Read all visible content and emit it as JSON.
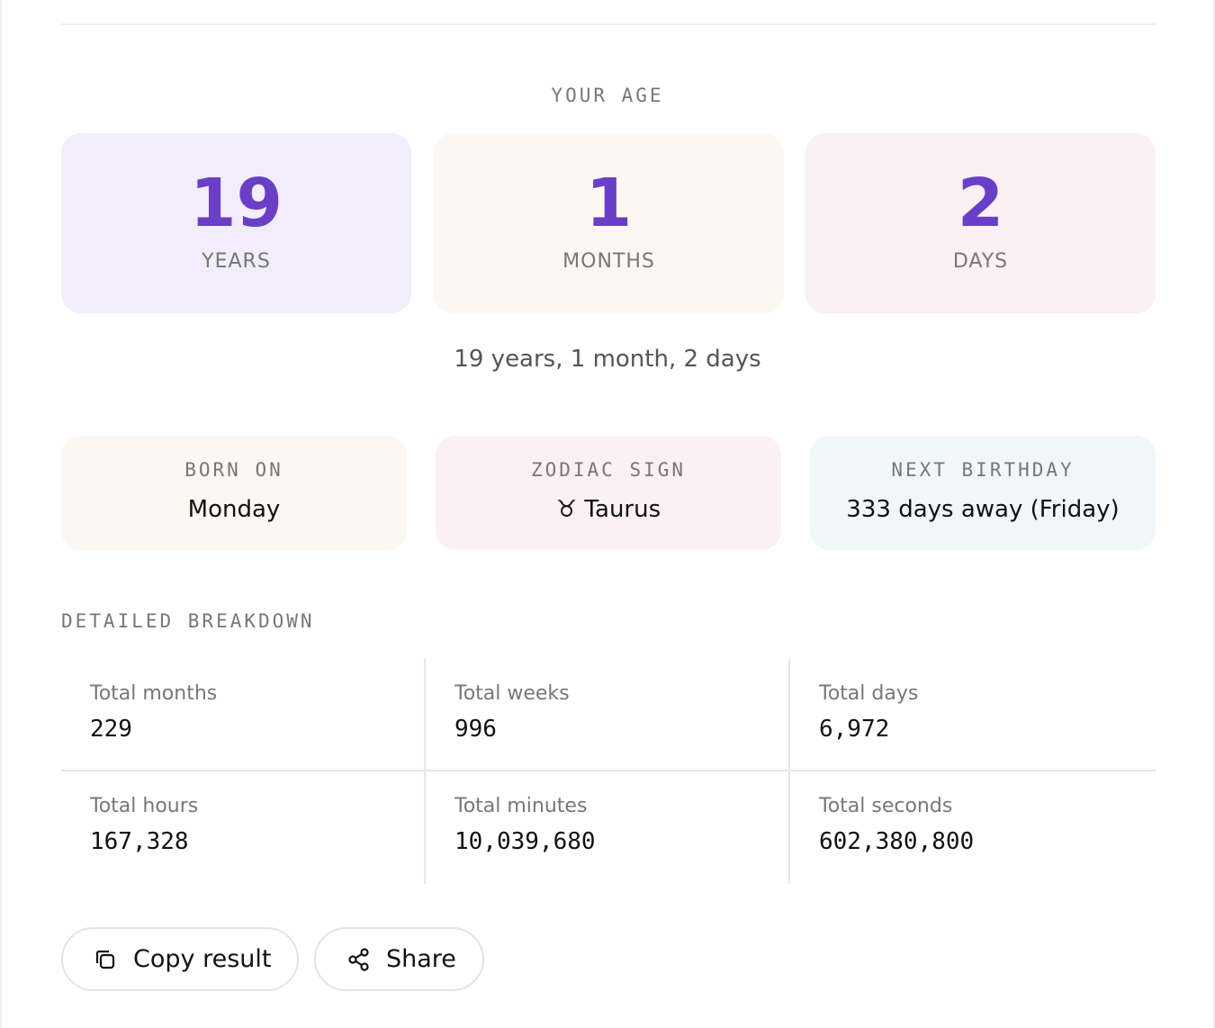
{
  "age": {
    "heading": "YOUR AGE",
    "units": [
      {
        "value": "19",
        "label": "YEARS"
      },
      {
        "value": "1",
        "label": "MONTHS"
      },
      {
        "value": "2",
        "label": "DAYS"
      }
    ],
    "summary": "19 years, 1 month, 2 days"
  },
  "facts": [
    {
      "label": "BORN ON",
      "value": "Monday"
    },
    {
      "label": "ZODIAC SIGN",
      "value": "♉ Taurus"
    },
    {
      "label": "NEXT BIRTHDAY",
      "value": "333 days away (Friday)"
    }
  ],
  "breakdown": {
    "heading": "DETAILED BREAKDOWN",
    "cells": [
      {
        "label": "Total months",
        "value": "229"
      },
      {
        "label": "Total weeks",
        "value": "996"
      },
      {
        "label": "Total days",
        "value": "6,972"
      },
      {
        "label": "Total hours",
        "value": "167,328"
      },
      {
        "label": "Total minutes",
        "value": "10,039,680"
      },
      {
        "label": "Total seconds",
        "value": "602,380,800"
      }
    ]
  },
  "actions": {
    "copy": "Copy result",
    "share": "Share"
  }
}
